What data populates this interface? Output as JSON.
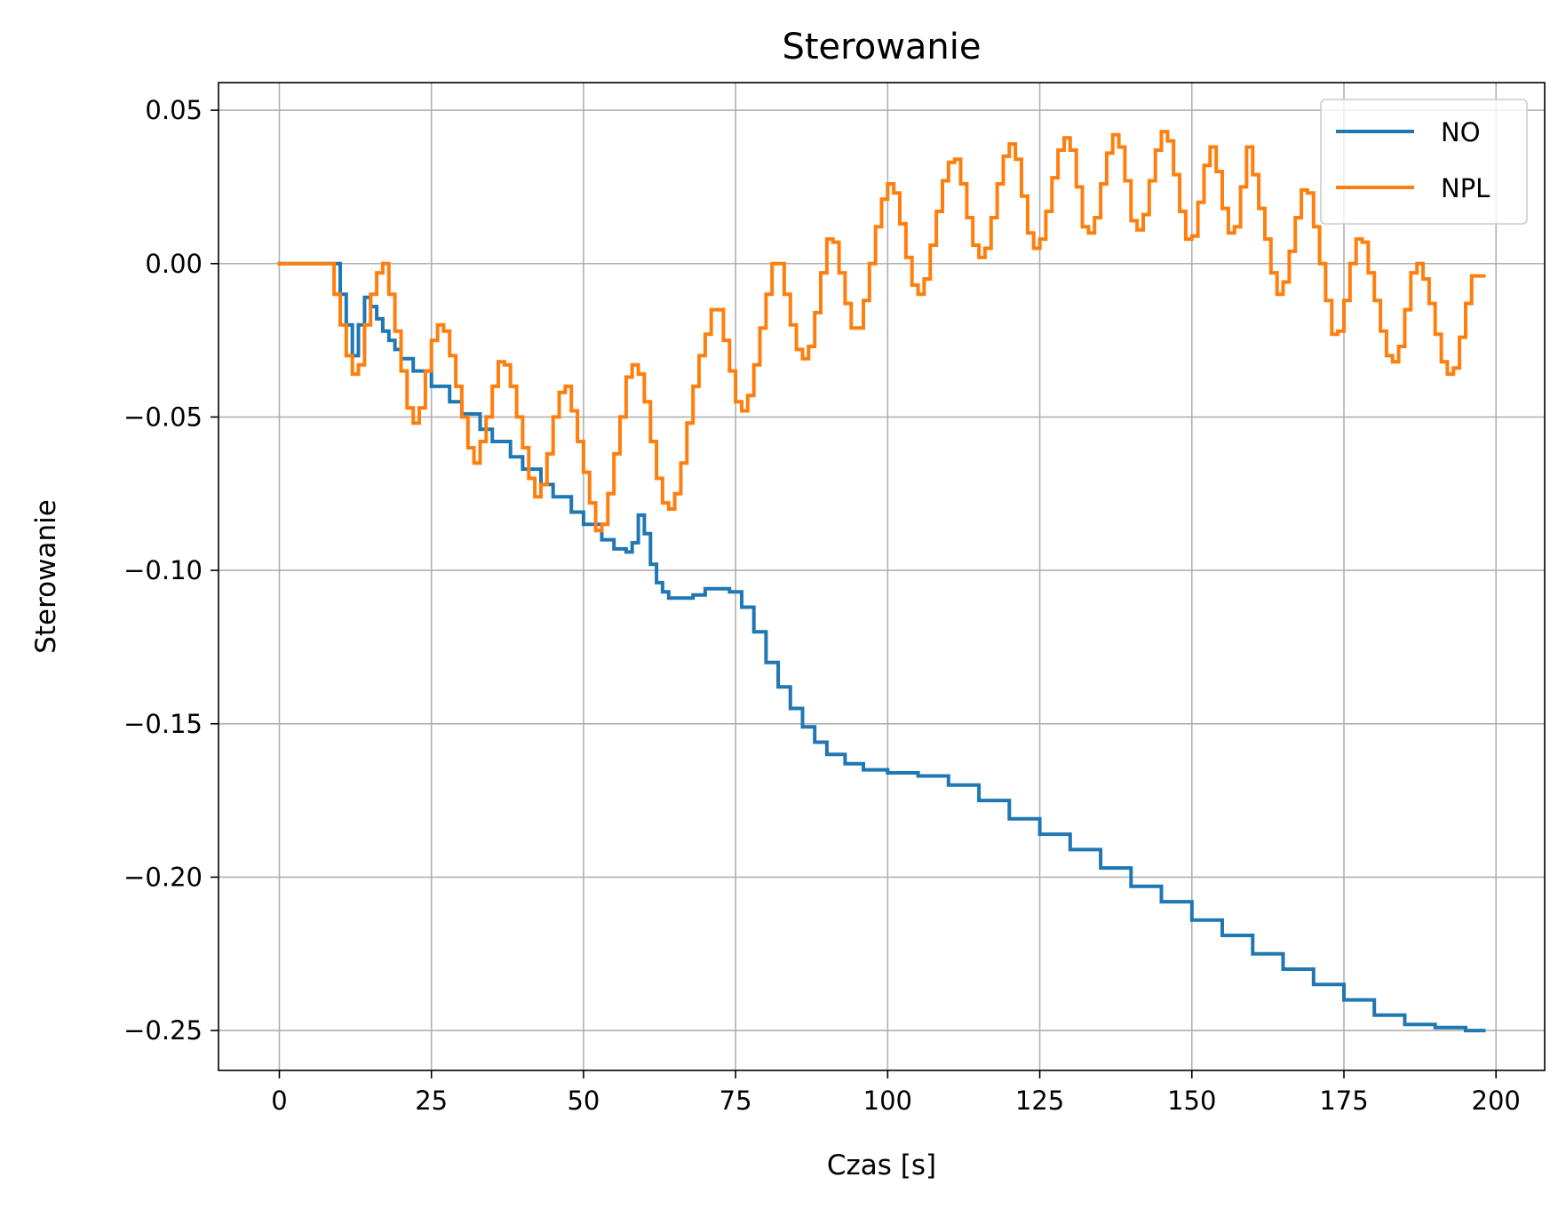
{
  "chart_data": {
    "type": "line",
    "title": "Sterowanie",
    "xlabel": "Czas [s]",
    "ylabel": "Sterowanie",
    "xlim": [
      -10,
      208
    ],
    "ylim": [
      -0.263,
      0.059
    ],
    "xticks": [
      0,
      25,
      50,
      75,
      100,
      125,
      150,
      175,
      200
    ],
    "xtick_labels": [
      "0",
      "25",
      "50",
      "75",
      "100",
      "125",
      "150",
      "175",
      "200"
    ],
    "yticks": [
      0.05,
      0.0,
      -0.05,
      -0.1,
      -0.15,
      -0.2,
      -0.25
    ],
    "ytick_labels": [
      "0.05",
      "0.00",
      "−0.05",
      "−0.10",
      "−0.15",
      "−0.20",
      "−0.25"
    ],
    "grid": true,
    "legend_position": "top-right",
    "step": true,
    "series": [
      {
        "name": "NO",
        "color": "#1f77b4",
        "x": [
          0,
          8,
          9,
          10,
          11,
          12,
          13,
          14,
          15,
          16,
          17,
          18,
          19,
          20,
          22,
          25,
          28,
          30,
          33,
          35,
          38,
          40,
          43,
          45,
          48,
          50,
          53,
          55,
          57,
          58,
          59,
          60,
          61,
          62,
          63,
          64,
          65,
          66,
          68,
          70,
          72,
          74,
          76,
          78,
          80,
          82,
          84,
          86,
          88,
          90,
          93,
          96,
          100,
          105,
          110,
          115,
          120,
          125,
          130,
          135,
          140,
          145,
          150,
          155,
          160,
          165,
          170,
          175,
          180,
          185,
          190,
          195,
          198
        ],
        "values": [
          0.0,
          0.0,
          0.0,
          -0.01,
          -0.02,
          -0.03,
          -0.02,
          -0.011,
          -0.014,
          -0.018,
          -0.022,
          -0.025,
          -0.028,
          -0.031,
          -0.035,
          -0.04,
          -0.045,
          -0.049,
          -0.054,
          -0.058,
          -0.063,
          -0.067,
          -0.072,
          -0.076,
          -0.081,
          -0.085,
          -0.09,
          -0.093,
          -0.094,
          -0.091,
          -0.082,
          -0.088,
          -0.098,
          -0.104,
          -0.107,
          -0.109,
          -0.109,
          -0.109,
          -0.108,
          -0.106,
          -0.106,
          -0.107,
          -0.112,
          -0.12,
          -0.13,
          -0.138,
          -0.145,
          -0.151,
          -0.156,
          -0.16,
          -0.163,
          -0.165,
          -0.166,
          -0.167,
          -0.17,
          -0.175,
          -0.181,
          -0.186,
          -0.191,
          -0.197,
          -0.203,
          -0.208,
          -0.214,
          -0.219,
          -0.225,
          -0.23,
          -0.235,
          -0.24,
          -0.245,
          -0.248,
          -0.249,
          -0.25,
          -0.25
        ]
      },
      {
        "name": "NPL",
        "color": "#ff7f0e",
        "x": [
          0,
          9,
          10,
          11,
          12,
          13,
          14,
          15,
          16,
          17,
          18,
          19,
          20,
          21,
          22,
          23,
          24,
          25,
          26,
          27,
          28,
          29,
          30,
          31,
          32,
          33,
          34,
          35,
          36,
          37,
          38,
          39,
          40,
          41,
          42,
          43,
          44,
          45,
          46,
          47,
          48,
          49,
          50,
          51,
          52,
          53,
          54,
          55,
          56,
          57,
          58,
          59,
          60,
          61,
          62,
          63,
          64,
          65,
          66,
          67,
          68,
          69,
          70,
          71,
          72,
          73,
          74,
          75,
          76,
          77,
          78,
          79,
          80,
          81,
          82,
          83,
          84,
          85,
          86,
          87,
          88,
          89,
          90,
          91,
          92,
          93,
          94,
          95,
          96,
          97,
          98,
          99,
          100,
          101,
          102,
          103,
          104,
          105,
          106,
          107,
          108,
          109,
          110,
          111,
          112,
          113,
          114,
          115,
          116,
          117,
          118,
          119,
          120,
          121,
          122,
          123,
          124,
          125,
          126,
          127,
          128,
          129,
          130,
          131,
          132,
          133,
          134,
          135,
          136,
          137,
          138,
          139,
          140,
          141,
          142,
          143,
          144,
          145,
          146,
          147,
          148,
          149,
          150,
          151,
          152,
          153,
          154,
          155,
          156,
          157,
          158,
          159,
          160,
          161,
          162,
          163,
          164,
          165,
          166,
          167,
          168,
          169,
          170,
          171,
          172,
          173,
          174,
          175,
          176,
          177,
          178,
          179,
          180,
          181,
          182,
          183,
          184,
          185,
          186,
          187,
          188,
          189,
          190,
          191,
          192,
          193,
          194,
          195,
          196,
          197,
          198
        ],
        "values": [
          0.0,
          -0.01,
          -0.02,
          -0.03,
          -0.036,
          -0.033,
          -0.02,
          -0.01,
          -0.003,
          0.0,
          -0.01,
          -0.022,
          -0.035,
          -0.047,
          -0.052,
          -0.047,
          -0.035,
          -0.025,
          -0.02,
          -0.022,
          -0.03,
          -0.04,
          -0.05,
          -0.06,
          -0.065,
          -0.058,
          -0.05,
          -0.04,
          -0.032,
          -0.033,
          -0.04,
          -0.05,
          -0.06,
          -0.07,
          -0.076,
          -0.072,
          -0.062,
          -0.05,
          -0.042,
          -0.04,
          -0.048,
          -0.058,
          -0.068,
          -0.078,
          -0.087,
          -0.085,
          -0.075,
          -0.062,
          -0.05,
          -0.037,
          -0.033,
          -0.036,
          -0.045,
          -0.058,
          -0.07,
          -0.078,
          -0.08,
          -0.075,
          -0.065,
          -0.052,
          -0.04,
          -0.03,
          -0.023,
          -0.015,
          -0.015,
          -0.025,
          -0.035,
          -0.045,
          -0.048,
          -0.043,
          -0.033,
          -0.021,
          -0.01,
          0.0,
          0.0,
          -0.01,
          -0.02,
          -0.028,
          -0.031,
          -0.027,
          -0.016,
          -0.003,
          0.008,
          0.007,
          -0.003,
          -0.013,
          -0.021,
          -0.021,
          -0.012,
          0.0,
          0.012,
          0.021,
          0.026,
          0.023,
          0.013,
          0.002,
          -0.007,
          -0.01,
          -0.005,
          0.006,
          0.017,
          0.027,
          0.033,
          0.034,
          0.026,
          0.015,
          0.006,
          0.002,
          0.005,
          0.015,
          0.026,
          0.035,
          0.039,
          0.034,
          0.022,
          0.01,
          0.005,
          0.008,
          0.017,
          0.028,
          0.037,
          0.041,
          0.037,
          0.025,
          0.012,
          0.01,
          0.015,
          0.026,
          0.036,
          0.042,
          0.038,
          0.027,
          0.014,
          0.011,
          0.016,
          0.027,
          0.037,
          0.043,
          0.04,
          0.029,
          0.017,
          0.008,
          0.009,
          0.02,
          0.032,
          0.038,
          0.03,
          0.018,
          0.01,
          0.012,
          0.025,
          0.038,
          0.029,
          0.018,
          0.008,
          -0.003,
          -0.01,
          -0.006,
          0.004,
          0.015,
          0.024,
          0.023,
          0.012,
          0.0,
          -0.012,
          -0.023,
          -0.022,
          -0.012,
          0.0,
          0.008,
          0.007,
          -0.003,
          -0.012,
          -0.022,
          -0.03,
          -0.032,
          -0.027,
          -0.015,
          -0.003,
          0.0,
          -0.005,
          -0.013,
          -0.023,
          -0.032,
          -0.036,
          -0.034,
          -0.024,
          -0.013,
          -0.004,
          -0.004,
          -0.004
        ]
      }
    ]
  }
}
